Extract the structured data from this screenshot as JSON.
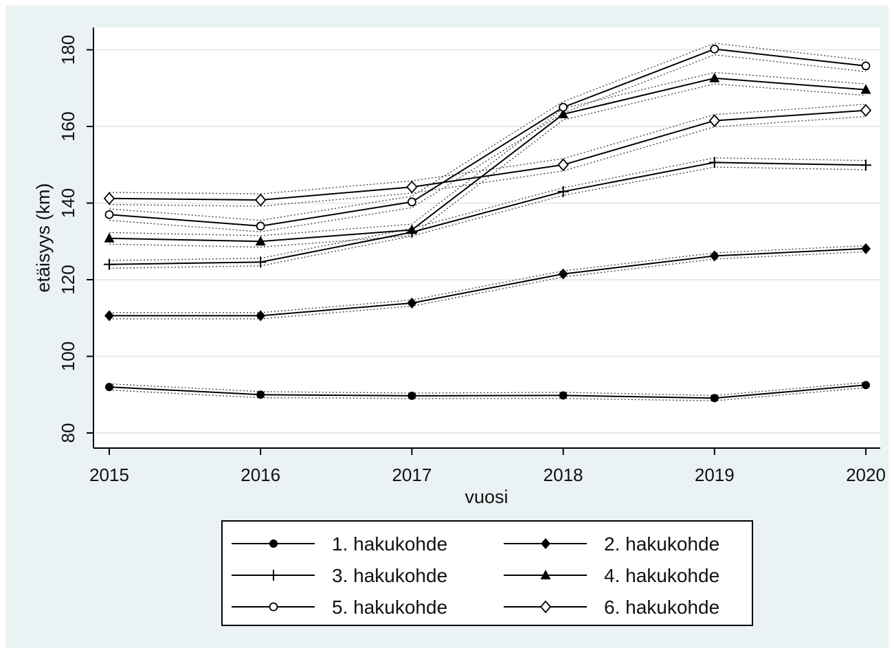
{
  "chart_data": {
    "type": "line",
    "xlabel": "vuosi",
    "ylabel": "etäisyys (km)",
    "x": [
      2015,
      2016,
      2017,
      2018,
      2019,
      2020
    ],
    "xlim": [
      2014.9,
      2020.1
    ],
    "ylim": [
      77,
      186
    ],
    "yticks": [
      80,
      100,
      120,
      140,
      160,
      180
    ],
    "grid": "horizontal",
    "legend_position": "bottom",
    "legend_columns": 2,
    "confidence_bands": "dotted",
    "series": [
      {
        "name": "1. hakukohde",
        "marker": "filled-circle",
        "values": [
          92.0,
          90.0,
          89.7,
          89.8,
          89.1,
          92.5
        ],
        "lower": [
          91.2,
          89.2,
          89.0,
          89.0,
          88.4,
          91.8
        ],
        "upper": [
          92.8,
          90.8,
          90.4,
          90.6,
          89.8,
          93.2
        ]
      },
      {
        "name": "2. hakukohde",
        "marker": "filled-diamond",
        "values": [
          110.6,
          110.6,
          113.9,
          121.5,
          126.2,
          128.1
        ],
        "lower": [
          109.8,
          109.8,
          113.1,
          120.7,
          125.4,
          127.3
        ],
        "upper": [
          111.4,
          111.4,
          114.7,
          122.3,
          127.0,
          128.9
        ]
      },
      {
        "name": "3. hakukohde",
        "marker": "plus",
        "values": [
          124.0,
          124.6,
          132.4,
          143.0,
          150.6,
          149.9
        ],
        "lower": [
          123.0,
          123.6,
          131.4,
          142.0,
          149.4,
          148.7
        ],
        "upper": [
          125.0,
          125.6,
          133.4,
          144.0,
          151.8,
          151.1
        ]
      },
      {
        "name": "4. hakukohde",
        "marker": "filled-triangle",
        "values": [
          130.8,
          130.0,
          133.0,
          163.2,
          172.6,
          169.6
        ],
        "lower": [
          129.3,
          128.5,
          131.5,
          161.7,
          171.1,
          168.1
        ],
        "upper": [
          132.3,
          131.5,
          134.5,
          164.7,
          174.1,
          171.1
        ]
      },
      {
        "name": "5. hakukohde",
        "marker": "hollow-circle",
        "values": [
          137.0,
          134.0,
          140.3,
          165.0,
          180.2,
          175.8
        ],
        "lower": [
          135.5,
          132.5,
          138.8,
          163.5,
          178.7,
          174.3
        ],
        "upper": [
          138.5,
          135.5,
          141.8,
          166.5,
          181.7,
          177.3
        ]
      },
      {
        "name": "6. hakukohde",
        "marker": "hollow-diamond",
        "values": [
          141.2,
          140.8,
          144.2,
          150.0,
          161.5,
          164.2
        ],
        "lower": [
          139.6,
          139.2,
          142.6,
          148.4,
          159.9,
          162.6
        ],
        "upper": [
          142.8,
          142.4,
          145.8,
          151.6,
          163.1,
          165.8
        ]
      }
    ]
  }
}
